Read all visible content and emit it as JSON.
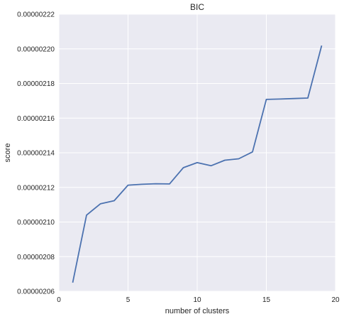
{
  "chart_data": {
    "type": "line",
    "title": "BIC",
    "xlabel": "number of clusters",
    "ylabel": "score",
    "xlim": [
      0,
      20
    ],
    "ylim": [
      2.06e-06,
      2.22e-06
    ],
    "x_ticks": [
      0,
      5,
      10,
      15,
      20
    ],
    "x_tick_labels": [
      "0",
      "5",
      "10",
      "15",
      "20"
    ],
    "y_ticks": [
      2.06e-06,
      2.08e-06,
      2.1e-06,
      2.12e-06,
      2.14e-06,
      2.16e-06,
      2.18e-06,
      2.2e-06,
      2.22e-06
    ],
    "y_tick_labels": [
      "0.00000206",
      "0.00000208",
      "0.00000210",
      "0.00000212",
      "0.00000214",
      "0.00000216",
      "0.00000218",
      "0.00000220",
      "0.00000222"
    ],
    "grid": true,
    "background": "#eaeaf2",
    "grid_color": "#ffffff",
    "line_color": "#4c72b0",
    "x": [
      1,
      2,
      3,
      4,
      5,
      6,
      7,
      8,
      9,
      10,
      11,
      12,
      13,
      14,
      15,
      16,
      17,
      18,
      19
    ],
    "values": [
      2.065e-06,
      2.104e-06,
      2.1105e-06,
      2.1123e-06,
      2.1213e-06,
      2.1218e-06,
      2.1221e-06,
      2.122e-06,
      2.1314e-06,
      2.1343e-06,
      2.1325e-06,
      2.1357e-06,
      2.1365e-06,
      2.1405e-06,
      2.1708e-06,
      2.171e-06,
      2.1713e-06,
      2.1716e-06,
      2.2019e-06
    ]
  }
}
